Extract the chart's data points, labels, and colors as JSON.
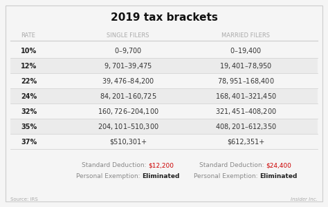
{
  "title": "2019 tax brackets",
  "col_headers": [
    "RATE",
    "SINGLE FILERS",
    "MARRIED FILERS"
  ],
  "rows": [
    {
      "rate": "10%",
      "single": "$0 – $9,700",
      "married": "$0 – $19,400"
    },
    {
      "rate": "12%",
      "single": "$9,701 – $39,475",
      "married": "$19,401 – $78,950"
    },
    {
      "rate": "22%",
      "single": "$39,476 – $84,200",
      "married": "$78,951 – $168,400"
    },
    {
      "rate": "24%",
      "single": "$84,201 – $160,725",
      "married": "$168,401 – $321,450"
    },
    {
      "rate": "32%",
      "single": "$160,726 – $204,100",
      "married": "$321,451 – $408,200"
    },
    {
      "rate": "35%",
      "single": "$204,101 – $510,300",
      "married": "$408,201 – $612,350"
    },
    {
      "rate": "37%",
      "single": "$510,301+",
      "married": "$612,351+"
    }
  ],
  "footer_rows": [
    {
      "single_label": "Standard Deduction: ",
      "single_value": "$12,200",
      "married_label": "Standard Deduction: ",
      "married_value": "$24,400",
      "value_bold": false,
      "value_color": "red"
    },
    {
      "single_label": "Personal Exemption: ",
      "single_value": "Eliminated",
      "married_label": "Personal Exemption: ",
      "married_value": "Eliminated",
      "value_bold": true,
      "value_color": "dark"
    }
  ],
  "source_text": "Source: IRS",
  "brand_text": "Insider Inc.",
  "bg_color": "#f5f5f5",
  "header_text_color": "#aaaaaa",
  "rate_bold_color": "#222222",
  "data_text_color": "#333333",
  "highlight_color": "#cc0000",
  "title_color": "#111111",
  "line_color": "#cccccc",
  "footer_label_color": "#888888",
  "title_fontsize": 11,
  "header_fontsize": 6,
  "data_fontsize": 7,
  "footer_fontsize": 6.5,
  "source_fontsize": 5
}
